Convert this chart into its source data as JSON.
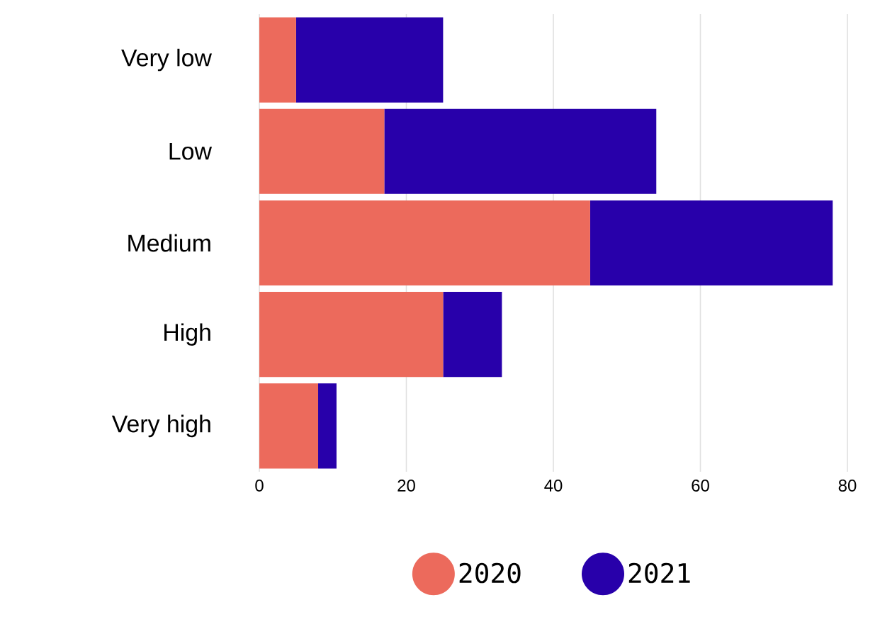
{
  "chart_data": {
    "type": "bar",
    "orientation": "horizontal",
    "stacked": true,
    "categories": [
      "Very low",
      "Low",
      "Medium",
      "High",
      "Very high"
    ],
    "series": [
      {
        "name": "2020",
        "color": "#ec6a5c",
        "values": [
          5,
          17,
          45,
          25,
          8
        ]
      },
      {
        "name": "2021",
        "color": "#2800aa",
        "values": [
          20,
          37,
          33,
          8,
          2.5
        ]
      }
    ],
    "xlim": [
      0,
      80
    ],
    "xticks": [
      0,
      20,
      40,
      60,
      80
    ],
    "grid": "x",
    "legend": "bottom"
  }
}
